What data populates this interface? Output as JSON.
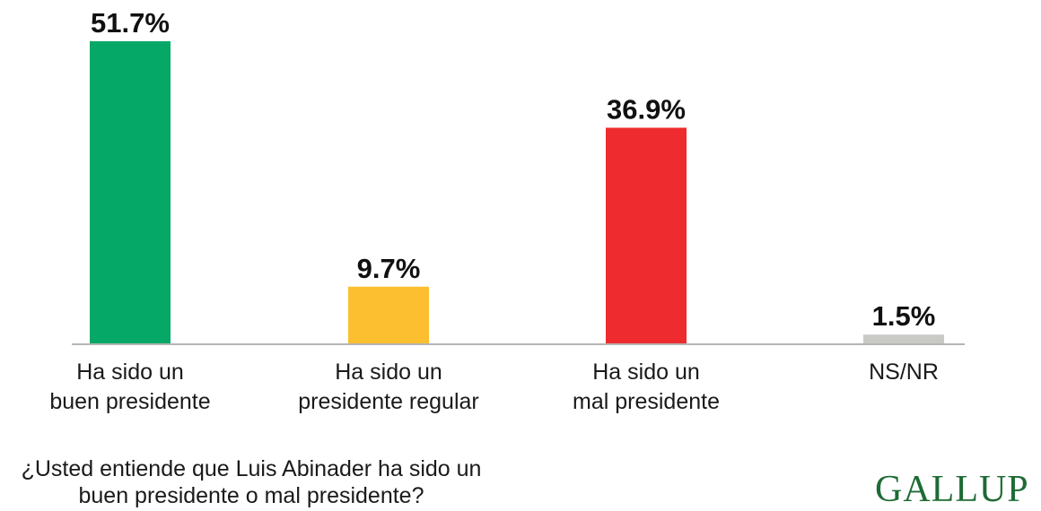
{
  "chart_data": {
    "type": "bar",
    "categories": [
      [
        "Ha sido un",
        "buen presidente"
      ],
      [
        "Ha sido un",
        "presidente regular"
      ],
      [
        "Ha sido un",
        "mal presidente"
      ],
      [
        "NS/NR"
      ]
    ],
    "values": [
      51.7,
      9.7,
      36.9,
      1.5
    ],
    "value_labels": [
      "51.7%",
      "9.7%",
      "36.9%",
      "1.5%"
    ],
    "colors": [
      "#06a867",
      "#fbbf2f",
      "#ee2b2f",
      "#c9c9c6"
    ],
    "ylim": [
      0,
      51.7
    ],
    "grid": false,
    "legend": "none"
  },
  "question": "¿Usted entiende que Luis Abinader ha sido un buen presidente o mal presidente?",
  "brand": {
    "name": "GALLUP",
    "color": "#1e6b35"
  },
  "axis_color": "#b5b5b5"
}
